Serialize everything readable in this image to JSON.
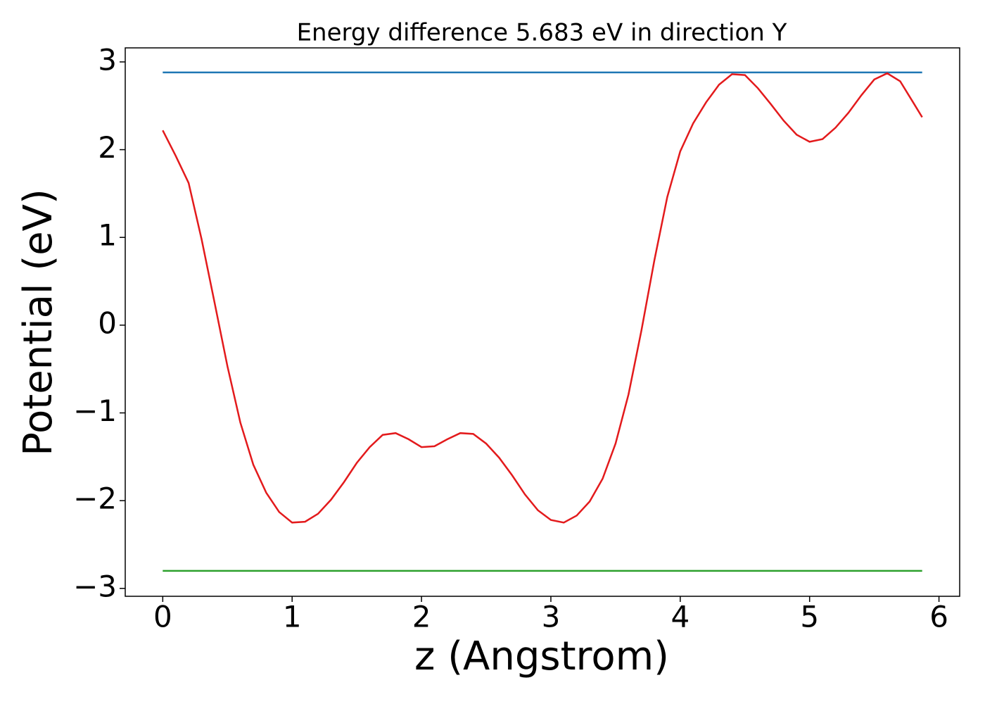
{
  "chart_data": {
    "type": "line",
    "title": "Energy difference 5.683 eV in direction Y",
    "xlabel": "z (Angstrom)",
    "ylabel": "Potential (eV)",
    "xlim": [
      -0.29,
      6.16
    ],
    "ylim": [
      -3.09,
      3.16
    ],
    "xticks": [
      0,
      1,
      2,
      3,
      4,
      5,
      6
    ],
    "yticks": [
      {
        "value": -3,
        "label": "−3"
      },
      {
        "value": -2,
        "label": "−2"
      },
      {
        "value": -1,
        "label": "−1"
      },
      0,
      1,
      2,
      3
    ],
    "series": [
      {
        "color": "#1f77b4",
        "x": [
          0,
          5.87
        ],
        "values": [
          2.88,
          2.88
        ]
      },
      {
        "color": "#2ca02c",
        "x": [
          0,
          5.87
        ],
        "values": [
          -2.8,
          -2.8
        ]
      },
      {
        "color": "#e31a1c",
        "x": [
          0,
          0.1,
          0.2,
          0.3,
          0.4,
          0.5,
          0.6,
          0.7,
          0.8,
          0.9,
          1.0,
          1.1,
          1.2,
          1.3,
          1.4,
          1.5,
          1.6,
          1.7,
          1.8,
          1.9,
          2.0,
          2.1,
          2.2,
          2.3,
          2.4,
          2.5,
          2.6,
          2.7,
          2.8,
          2.9,
          3.0,
          3.1,
          3.2,
          3.3,
          3.4,
          3.5,
          3.6,
          3.7,
          3.8,
          3.9,
          4.0,
          4.1,
          4.2,
          4.3,
          4.4,
          4.5,
          4.6,
          4.7,
          4.8,
          4.9,
          5.0,
          5.1,
          5.2,
          5.3,
          5.4,
          5.5,
          5.6,
          5.7,
          5.8,
          5.87
        ],
        "values": [
          2.22,
          1.93,
          1.62,
          0.98,
          0.26,
          -0.47,
          -1.11,
          -1.59,
          -1.91,
          -2.13,
          -2.25,
          -2.24,
          -2.15,
          -1.99,
          -1.79,
          -1.57,
          -1.39,
          -1.25,
          -1.23,
          -1.3,
          -1.39,
          -1.38,
          -1.3,
          -1.23,
          -1.24,
          -1.35,
          -1.51,
          -1.71,
          -1.93,
          -2.11,
          -2.22,
          -2.25,
          -2.17,
          -2.01,
          -1.75,
          -1.35,
          -0.79,
          -0.06,
          0.74,
          1.46,
          1.98,
          2.3,
          2.54,
          2.74,
          2.86,
          2.85,
          2.7,
          2.52,
          2.33,
          2.17,
          2.09,
          2.12,
          2.25,
          2.42,
          2.62,
          2.8,
          2.87,
          2.78,
          2.54,
          2.37
        ]
      }
    ]
  }
}
